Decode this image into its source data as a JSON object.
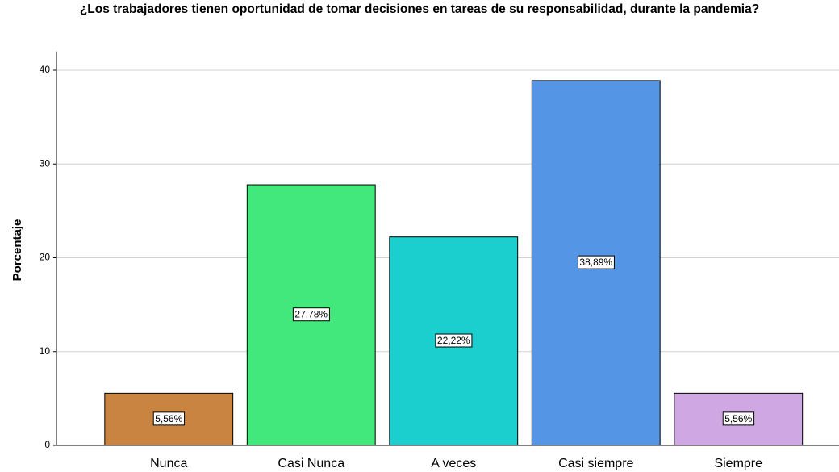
{
  "chart_data": {
    "type": "bar",
    "title": "¿Los trabajadores tienen oportunidad de tomar decisiones en tareas de su responsabilidad, durante la pandemia?",
    "y_label": "Porcentaje",
    "categories": [
      "Nunca",
      "Casi Nunca",
      "A veces",
      "Casi siempre",
      "Siempre"
    ],
    "values": [
      5.56,
      27.78,
      22.22,
      38.89,
      5.56
    ],
    "value_labels": [
      "5,56%",
      "27,78%",
      "22,22%",
      "38,89%",
      "5,56%"
    ],
    "colors": [
      "#c98441",
      "#42e87c",
      "#1ccfcf",
      "#5495e6",
      "#cfa8e3"
    ],
    "ylim": [
      0,
      42
    ],
    "yticks": [
      0,
      10,
      20,
      30,
      40
    ],
    "grid": true
  }
}
